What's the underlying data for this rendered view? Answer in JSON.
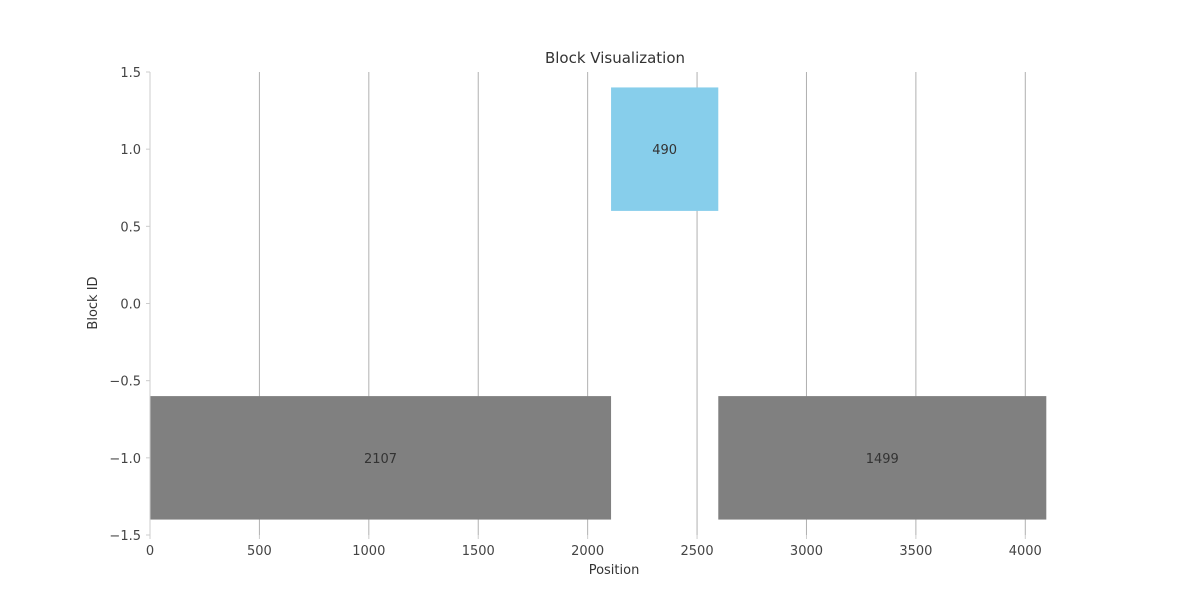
{
  "chart_data": {
    "type": "bar",
    "orientation": "horizontal-blocks",
    "title": "Block Visualization",
    "xlabel": "Position",
    "ylabel": "Block ID",
    "xlim": [
      0,
      4250
    ],
    "ylim": [
      -1.5,
      1.5
    ],
    "x_ticks": [
      0,
      500,
      1000,
      1500,
      2000,
      2500,
      3000,
      3500,
      4000
    ],
    "y_ticks": [
      -1.5,
      -1.0,
      -0.5,
      0.0,
      0.5,
      1.0,
      1.5
    ],
    "x_tick_labels": [
      "0",
      "500",
      "1000",
      "1500",
      "2000",
      "2500",
      "3000",
      "3500",
      "4000"
    ],
    "y_tick_labels": [
      "−1.5",
      "−1.0",
      "−0.5",
      "0.0",
      "0.5",
      "1.0",
      "1.5"
    ],
    "grid": "vertical",
    "bar_height": 0.8,
    "blocks": [
      {
        "start": 0,
        "length": 2107,
        "y": -1,
        "label": "2107",
        "color": "#808080"
      },
      {
        "start": 2107,
        "length": 490,
        "y": 1,
        "label": "490",
        "color": "#87ceeb"
      },
      {
        "start": 2597,
        "length": 1499,
        "y": -1,
        "label": "1499",
        "color": "#808080"
      }
    ]
  }
}
